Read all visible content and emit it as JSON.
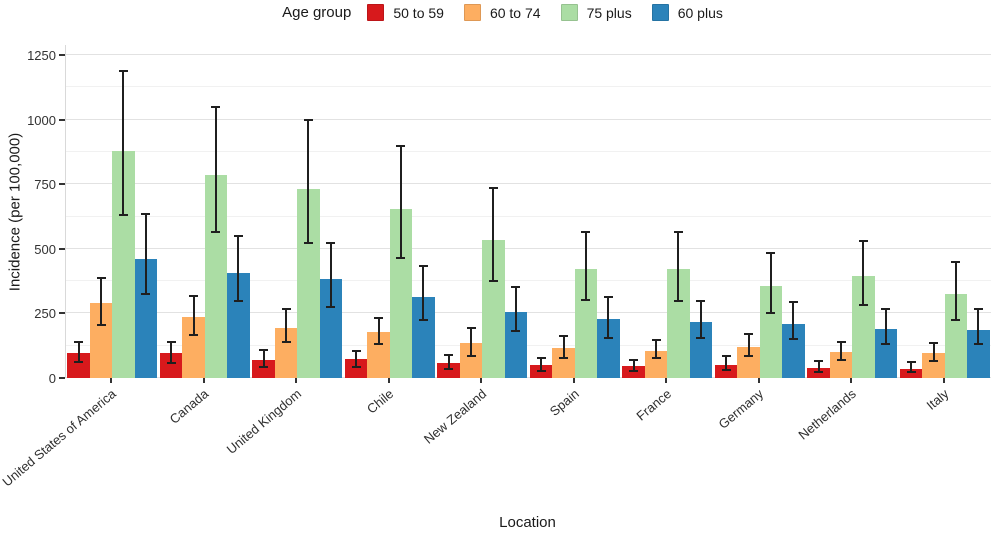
{
  "page": {
    "background": "#ffffff"
  },
  "chart_data": {
    "type": "bar",
    "legend_title": "Age group",
    "legend_position": "top-center",
    "xlabel": "Location",
    "ylabel": "Incidence (per 100,000)",
    "ylim": [
      0,
      1250
    ],
    "y_major_ticks": [
      0,
      250,
      500,
      750,
      1000,
      1250
    ],
    "y_minor_ticks": [
      125,
      375,
      625,
      875,
      1125
    ],
    "grid": true,
    "error_bars": true,
    "categories": [
      "United States of America",
      "Canada",
      "United Kingdom",
      "Chile",
      "New Zealand",
      "Spain",
      "France",
      "Germany",
      "Netherlands",
      "Italy"
    ],
    "series": [
      {
        "name": "50 to 59",
        "color": "#d7191c",
        "values": [
          95,
          95,
          70,
          75,
          60,
          50,
          45,
          50,
          40,
          35
        ],
        "error_low": [
          65,
          62,
          45,
          45,
          40,
          30,
          30,
          35,
          28,
          27
        ],
        "error_high": [
          135,
          135,
          105,
          100,
          85,
          75,
          65,
          80,
          62,
          58
        ]
      },
      {
        "name": "60 to 74",
        "color": "#fdae61",
        "values": [
          290,
          235,
          195,
          180,
          135,
          115,
          105,
          120,
          100,
          95
        ],
        "error_low": [
          210,
          170,
          145,
          135,
          90,
          80,
          80,
          90,
          72,
          70
        ],
        "error_high": [
          385,
          315,
          265,
          230,
          190,
          160,
          145,
          165,
          135,
          130
        ]
      },
      {
        "name": "75 plus",
        "color": "#abdda4",
        "values": [
          880,
          785,
          730,
          655,
          535,
          420,
          420,
          355,
          395,
          325
        ],
        "error_low": [
          635,
          570,
          525,
          470,
          380,
          305,
          300,
          255,
          285,
          230
        ],
        "error_high": [
          1185,
          1045,
          995,
          895,
          730,
          560,
          560,
          480,
          525,
          445
        ]
      },
      {
        "name": "60 plus",
        "color": "#2b83ba",
        "values": [
          460,
          405,
          385,
          315,
          255,
          230,
          215,
          210,
          190,
          185
        ],
        "error_low": [
          330,
          300,
          280,
          230,
          185,
          160,
          160,
          155,
          135,
          135
        ],
        "error_high": [
          630,
          545,
          520,
          430,
          350,
          310,
          295,
          290,
          265,
          265
        ]
      }
    ]
  }
}
